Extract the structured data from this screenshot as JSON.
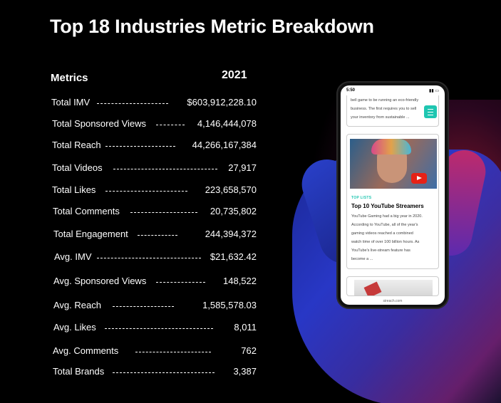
{
  "title": "Top 18 Industries Metric Breakdown",
  "columns": {
    "metrics": "Metrics",
    "year": "2021"
  },
  "rows": [
    {
      "label": "Total IMV",
      "value": "$603,912,228.10"
    },
    {
      "label": "Total Sponsored Views",
      "value": "4,146,444,078"
    },
    {
      "label": "Total Reach",
      "value": "44,266,167,384"
    },
    {
      "label": "Total Videos",
      "value": "27,917"
    },
    {
      "label": "Total Likes",
      "value": "223,658,570"
    },
    {
      "label": "Total Comments",
      "value": "20,735,802"
    },
    {
      "label": "Total Engagement",
      "value": "244,394,372"
    },
    {
      "label": "Avg. IMV",
      "value": "$21,632.42"
    },
    {
      "label": "Avg. Sponsored Views",
      "value": "148,522"
    },
    {
      "label": "Avg. Reach",
      "value": "1,585,578.03"
    },
    {
      "label": "Avg. Likes",
      "value": "8,011"
    },
    {
      "label": "Avg. Comments",
      "value": "762"
    },
    {
      "label": "Total Brands",
      "value": "3,387"
    }
  ],
  "phone": {
    "time": "5:50",
    "top_card_lines": [
      "bell game to be running an eco-friendly",
      "business. The first requires you to sell",
      "your inventory from sustainable ..."
    ],
    "tag": "TOP LISTS",
    "card_title": "Top 10 YouTube Streamers",
    "card_lines": [
      "YouTube Gaming had a big year in 2020.",
      "According to YouTube, all of the year's",
      "gaming videos reached a combined",
      "watch time of over 100 billion hours. As",
      "YouTube's live-stream feature has",
      "become a ..."
    ],
    "url": "sireach.com"
  }
}
